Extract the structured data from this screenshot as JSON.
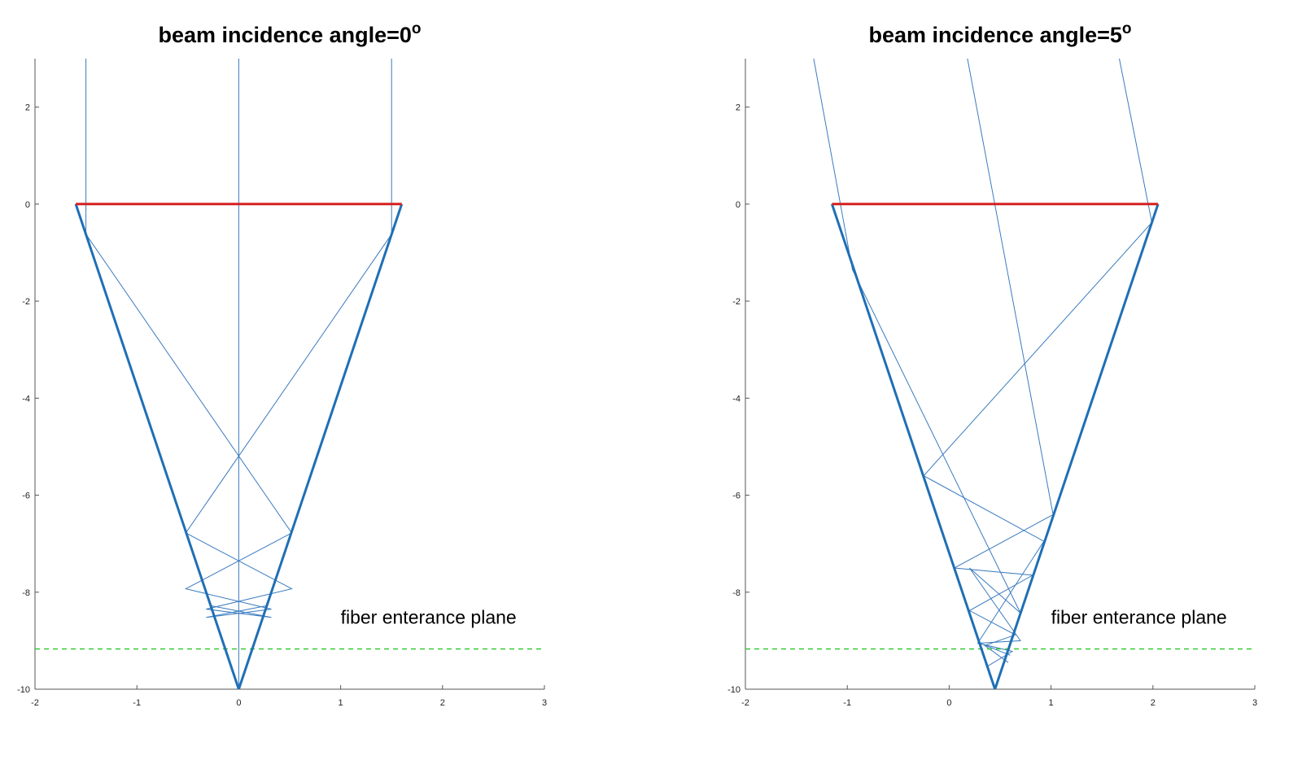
{
  "chart_data": [
    {
      "type": "line",
      "title": "beam incidence angle=0°",
      "title_parts": {
        "main": "beam incidence angle=0",
        "sup": "o"
      },
      "xlim": [
        -2,
        3
      ],
      "ylim": [
        -10,
        3
      ],
      "xticks": [
        -2,
        -1,
        0,
        1,
        2,
        3
      ],
      "yticks": [
        2,
        0,
        -2,
        -4,
        -6,
        -8,
        -10
      ],
      "grid": false,
      "annotation": {
        "text": "fiber enterance plane",
        "x": 1.0,
        "y": -8.65
      },
      "series": [
        {
          "role": "cone-wall",
          "color": "#1f6fb5",
          "x": [
            -1.6,
            0,
            1.6
          ],
          "y": [
            0,
            -10,
            0
          ]
        },
        {
          "role": "entrance-face",
          "color": "#d62020",
          "x": [
            -1.6,
            1.6
          ],
          "y": [
            0,
            0
          ]
        },
        {
          "role": "fiber-plane",
          "color": "#33cc33",
          "x": [
            -2,
            3
          ],
          "y": [
            -9.17,
            -9.17
          ]
        },
        {
          "role": "ray",
          "color": "#3a7bbf",
          "x": [
            0,
            0
          ],
          "y": [
            3,
            -10
          ]
        },
        {
          "role": "ray",
          "color": "#3a7bbf",
          "x": [
            -1.5,
            -1.5,
            0.52,
            -0.52,
            0.32,
            -0.32,
            0.27
          ],
          "y": [
            3,
            -0.62,
            -6.78,
            -7.93,
            -8.35,
            -8.52,
            -8.28
          ]
        },
        {
          "role": "ray",
          "color": "#3a7bbf",
          "x": [
            1.5,
            1.5,
            -0.52,
            0.52,
            -0.32,
            0.32,
            -0.27
          ],
          "y": [
            3,
            -0.62,
            -6.78,
            -7.93,
            -8.35,
            -8.52,
            -8.28
          ]
        }
      ]
    },
    {
      "type": "line",
      "title": "beam incidence angle=5°",
      "title_parts": {
        "main": "beam incidence angle=5",
        "sup": "o"
      },
      "xlim": [
        -2,
        3
      ],
      "ylim": [
        -10,
        3
      ],
      "xticks": [
        -2,
        -1,
        0,
        1,
        2,
        3
      ],
      "yticks": [
        2,
        0,
        -2,
        -4,
        -6,
        -8,
        -10
      ],
      "grid": false,
      "annotation": {
        "text": "fiber enterance plane",
        "x": 1.0,
        "y": -8.65
      },
      "series": [
        {
          "role": "cone-wall",
          "color": "#1f6fb5",
          "x": [
            -1.15,
            0.45,
            2.05
          ],
          "y": [
            0,
            -10,
            0
          ]
        },
        {
          "role": "entrance-face",
          "color": "#d62020",
          "x": [
            -1.15,
            2.05
          ],
          "y": [
            0,
            0
          ]
        },
        {
          "role": "fiber-plane",
          "color": "#33cc33",
          "x": [
            -2,
            3
          ],
          "y": [
            -9.17,
            -9.17
          ]
        },
        {
          "role": "ray",
          "color": "#3a7bbf",
          "x": [
            -1.33,
            -0.95,
            0.7,
            0.2,
            0.7,
            0.3,
            0.6
          ],
          "y": [
            3,
            -1.35,
            -8.43,
            -7.5,
            -9.0,
            -9.05,
            -9.3
          ]
        },
        {
          "role": "ray",
          "color": "#3a7bbf",
          "x": [
            0.18,
            1.02,
            0.05,
            0.82,
            0.2,
            0.65,
            0.35,
            0.58
          ],
          "y": [
            3,
            -6.4,
            -7.5,
            -7.65,
            -8.38,
            -8.88,
            -9.1,
            -9.45
          ]
        },
        {
          "role": "ray",
          "color": "#3a7bbf",
          "x": [
            1.67,
            1.99,
            -0.25,
            0.93,
            0.28,
            0.62,
            0.38
          ],
          "y": [
            3,
            -0.38,
            -5.6,
            -6.95,
            -9.05,
            -9.22,
            -9.52
          ]
        }
      ]
    }
  ]
}
